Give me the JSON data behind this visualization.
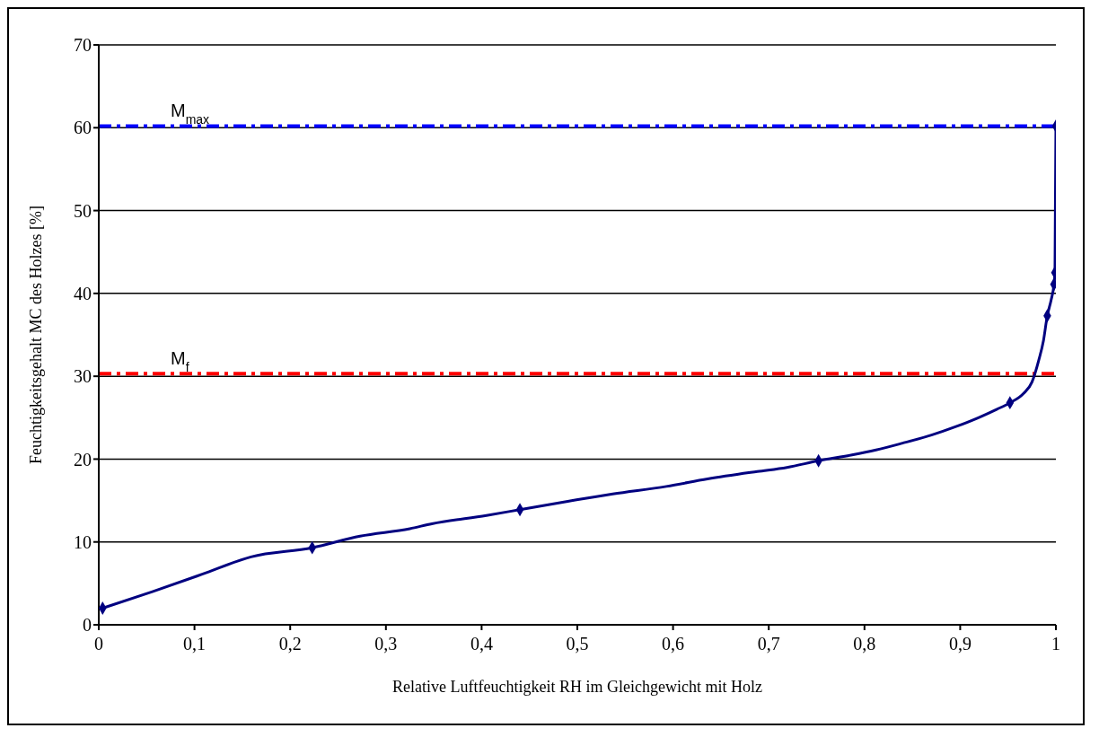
{
  "chart_data": {
    "type": "line",
    "xlabel": "Relative Luftfeuchtigkeit RH im Gleichgewicht mit Holz",
    "ylabel": "Feuchtigkeitsgehalt MC des Holzes [%]",
    "xlim": [
      0,
      1
    ],
    "ylim": [
      0,
      70
    ],
    "xticks": [
      0,
      {
        "value": 0.1,
        "label": "0,1"
      },
      {
        "value": 0.2,
        "label": "0,2"
      },
      {
        "value": 0.3,
        "label": "0,3"
      },
      {
        "value": 0.4,
        "label": "0,4"
      },
      {
        "value": 0.5,
        "label": "0,5"
      },
      {
        "value": 0.6,
        "label": "0,6"
      },
      {
        "value": 0.7,
        "label": "0,7"
      },
      {
        "value": 0.8,
        "label": "0,8"
      },
      {
        "value": 0.9,
        "label": "0,9"
      },
      1
    ],
    "yticks": [
      0,
      10,
      20,
      30,
      40,
      50,
      60,
      70
    ],
    "grid": "y",
    "legend": false,
    "series": [
      {
        "marker": "none",
        "color": "#000080",
        "x": [
          0.004,
          0.056,
          0.108,
          0.159,
          0.223,
          0.273,
          0.325,
          0.348,
          0.405,
          0.44,
          0.49,
          0.537,
          0.593,
          0.636,
          0.688,
          0.719,
          0.752,
          0.787,
          0.812,
          0.839,
          0.87,
          0.895,
          0.919,
          0.938,
          0.952,
          0.966,
          0.975,
          0.982,
          0.987,
          0.991,
          0.995,
          0.998,
          0.999,
          1.0
        ],
        "values": [
          2.0,
          4.0,
          6.1,
          8.2,
          9.3,
          10.7,
          11.6,
          12.2,
          13.2,
          13.9,
          14.9,
          15.8,
          16.7,
          17.6,
          18.5,
          19.0,
          19.8,
          20.5,
          21.1,
          21.9,
          22.9,
          23.9,
          25.0,
          26.0,
          26.8,
          27.9,
          29.3,
          31.9,
          34.3,
          37.3,
          39.2,
          41.1,
          42.5,
          60.2
        ]
      },
      {
        "type": "scatter",
        "marker": "diamond",
        "color": "#000080",
        "x": [
          0.004,
          0.223,
          0.44,
          0.752,
          0.952,
          0.991,
          0.998,
          0.999,
          1.0
        ],
        "values": [
          2.0,
          9.3,
          13.9,
          19.8,
          26.8,
          37.3,
          41.1,
          42.5,
          60.2
        ]
      }
    ],
    "ref_lines": [
      {
        "axis": "y",
        "value": 60.2,
        "label": "M$_{max}$",
        "color": "#0000ff",
        "line_style": "dashed"
      },
      {
        "axis": "y",
        "value": 30.3,
        "label": "M$_{f}$",
        "color": "#ff0000",
        "line_style": "dashed"
      }
    ]
  }
}
